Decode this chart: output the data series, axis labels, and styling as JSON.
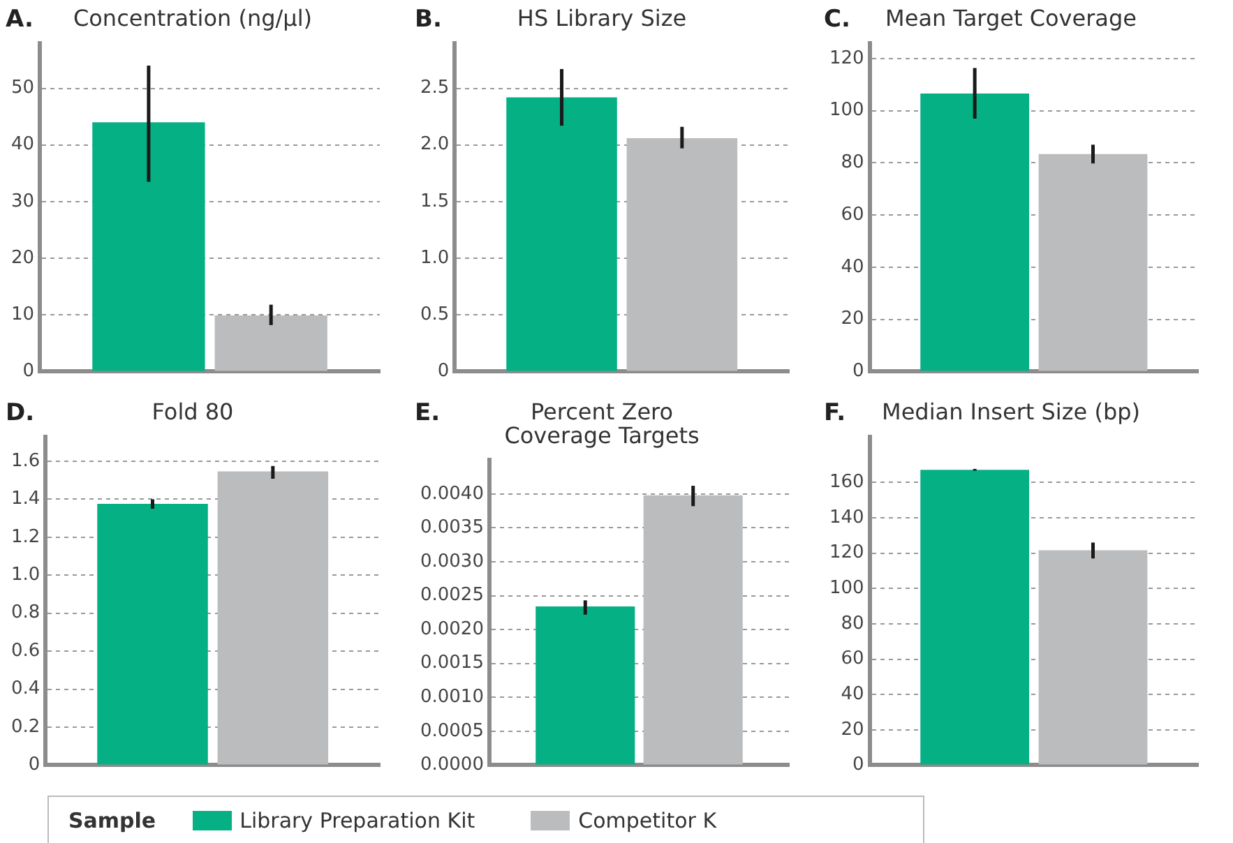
{
  "chart_data": [
    {
      "type": "bar",
      "title": "Concentration (ng/µl)",
      "annotations": [
        "A."
      ],
      "categories": [
        null
      ],
      "grid": "y",
      "tick_labels": "y",
      "legend": "bottom",
      "legend_title": "Sample",
      "ylim": [
        0,
        58
      ],
      "yticks": [
        0,
        10,
        20,
        30,
        40,
        50
      ],
      "series": [
        {
          "name": "Library Preparation Kit",
          "color": "#05b084",
          "values": [
            44
          ],
          "errors": [
            [
              33.5,
              54
            ]
          ]
        },
        {
          "name": "Competitor K",
          "color": "#bbbcbe",
          "values": [
            9.9
          ],
          "errors": [
            [
              8.2,
              11.8
            ]
          ]
        }
      ]
    },
    {
      "type": "bar",
      "title": "HS Library Size",
      "annotations": [
        "B."
      ],
      "categories": [
        null
      ],
      "grid": "y",
      "tick_labels": "y",
      "ylim": [
        0,
        2.9
      ],
      "yticks": [
        0,
        {
          "value": 0.5,
          "label": "0.5"
        },
        {
          "value": 1,
          "label": "1.0"
        },
        {
          "value": 1.5,
          "label": "1.5"
        },
        {
          "value": 2,
          "label": "2.0"
        },
        {
          "value": 2.5,
          "label": "2.5"
        }
      ],
      "series": [
        {
          "color": "#05b084",
          "values": [
            2.42
          ],
          "errors": [
            [
              2.17,
              2.67
            ]
          ]
        },
        {
          "color": "#bbbcbe",
          "values": [
            2.06
          ],
          "errors": [
            [
              1.97,
              2.16
            ]
          ]
        }
      ]
    },
    {
      "type": "bar",
      "title": "Mean Target Coverage",
      "annotations": [
        "C."
      ],
      "categories": [
        null
      ],
      "grid": "y",
      "tick_labels": "y",
      "ylim": [
        0,
        126
      ],
      "yticks": [
        0,
        20,
        40,
        60,
        80,
        100,
        120
      ],
      "series": [
        {
          "color": "#05b084",
          "values": [
            106.6
          ],
          "errors": [
            [
              97,
              116.4
            ]
          ]
        },
        {
          "color": "#bbbcbe",
          "values": [
            83.4
          ],
          "errors": [
            [
              79.8,
              87
            ]
          ]
        }
      ]
    },
    {
      "type": "bar",
      "title": "Fold 80",
      "annotations": [
        "D."
      ],
      "categories": [
        null
      ],
      "grid": "y",
      "tick_labels": "y",
      "ylim": [
        0,
        1.73
      ],
      "yticks": [
        0,
        0.2,
        0.4,
        0.6,
        0.8,
        {
          "value": 1,
          "label": "1.0"
        },
        1.2,
        1.4,
        1.6
      ],
      "series": [
        {
          "color": "#05b084",
          "values": [
            1.376
          ],
          "errors": [
            [
              1.35,
              1.4
            ]
          ]
        },
        {
          "color": "#bbbcbe",
          "values": [
            1.547
          ],
          "errors": [
            [
              1.508,
              1.575
            ]
          ]
        }
      ]
    },
    {
      "type": "bar",
      "title": "Percent Zero\nCoverage Targets",
      "annotations": [
        "E."
      ],
      "categories": [
        null
      ],
      "grid": "y",
      "tick_labels": "y",
      "ylim": [
        0,
        0.0045
      ],
      "yticks": [
        {
          "value": 0,
          "label": "0.0000"
        },
        0.0005,
        {
          "value": 0.001,
          "label": "0.0010"
        },
        0.0015,
        {
          "value": 0.002,
          "label": "0.0020"
        },
        0.0025,
        {
          "value": 0.003,
          "label": "0.0030"
        },
        0.0035,
        {
          "value": 0.004,
          "label": "0.0040"
        }
      ],
      "series": [
        {
          "color": "#05b084",
          "values": [
            0.00234
          ],
          "errors": [
            [
              0.00222,
              0.00243
            ]
          ]
        },
        {
          "color": "#bbbcbe",
          "values": [
            0.00398
          ],
          "errors": [
            [
              0.00382,
              0.00412
            ]
          ]
        }
      ]
    },
    {
      "type": "bar",
      "title": "Median Insert Size (bp)",
      "annotations": [
        "F."
      ],
      "categories": [
        null
      ],
      "grid": "y",
      "tick_labels": "y",
      "ylim": [
        0,
        186
      ],
      "yticks": [
        0,
        20,
        40,
        60,
        80,
        100,
        120,
        140,
        160
      ],
      "series": [
        {
          "color": "#05b084",
          "values": [
            167.2
          ],
          "errors": [
            [
              166.7,
              167.7
            ]
          ]
        },
        {
          "color": "#bbbcbe",
          "values": [
            121.6
          ],
          "errors": [
            [
              117,
              126
            ]
          ]
        }
      ]
    }
  ]
}
